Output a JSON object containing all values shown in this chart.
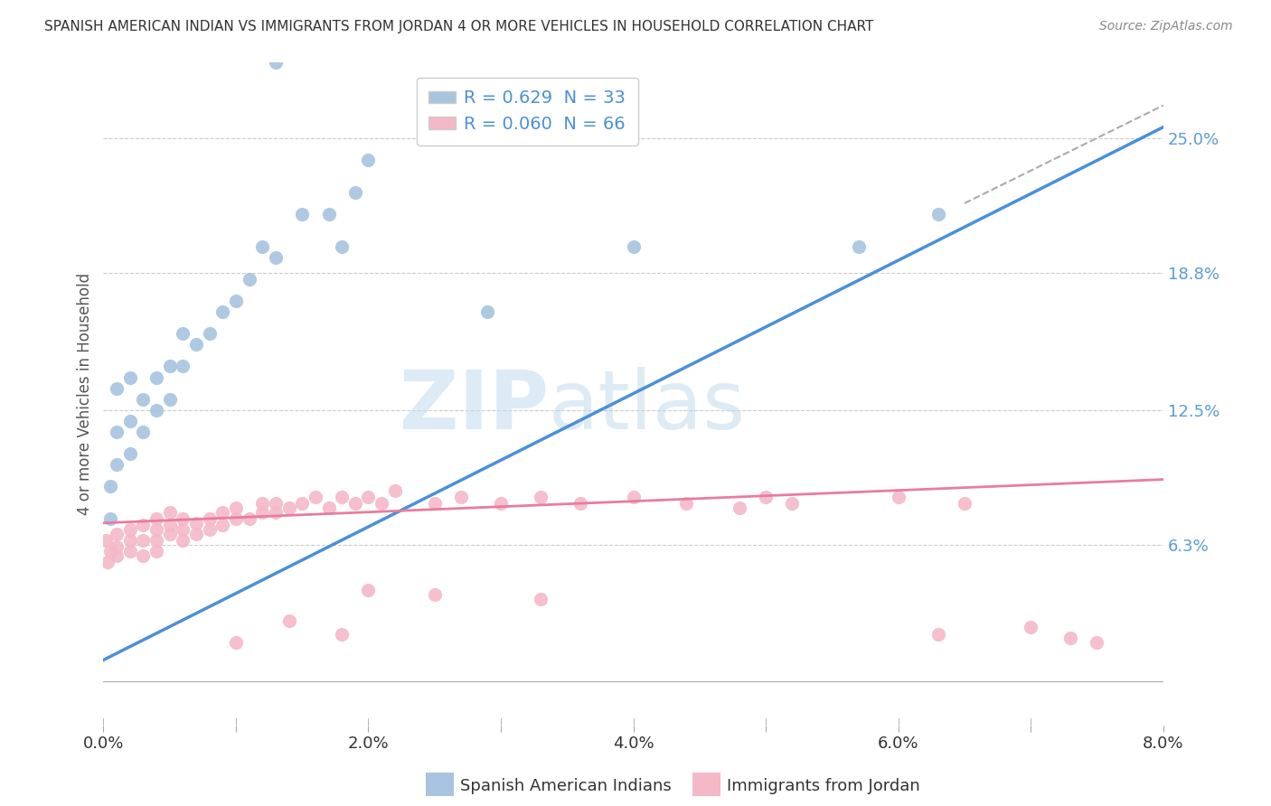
{
  "title": "SPANISH AMERICAN INDIAN VS IMMIGRANTS FROM JORDAN 4 OR MORE VEHICLES IN HOUSEHOLD CORRELATION CHART",
  "source": "Source: ZipAtlas.com",
  "ylabel": "4 or more Vehicles in Household",
  "xmin": 0.0,
  "xmax": 0.08,
  "ymin": -0.02,
  "ymax": 0.285,
  "yticks": [
    0.063,
    0.125,
    0.188,
    0.25
  ],
  "ytick_labels": [
    "6.3%",
    "12.5%",
    "18.8%",
    "25.0%"
  ],
  "xticks": [
    0.0,
    0.01,
    0.02,
    0.03,
    0.04,
    0.05,
    0.06,
    0.07,
    0.08
  ],
  "xtick_labels": [
    "0.0%",
    "",
    "2.0%",
    "",
    "4.0%",
    "",
    "6.0%",
    "",
    "8.0%"
  ],
  "grid_color": "#cccccc",
  "background_color": "#ffffff",
  "series1_color": "#a8c4e0",
  "series2_color": "#f4b8c8",
  "trendline1_color": "#4a90d9",
  "trendline2_color": "#e87ca0",
  "R1": 0.629,
  "N1": 33,
  "R2": 0.06,
  "N2": 66,
  "legend_label1": "Spanish American Indians",
  "legend_label2": "Immigrants from Jordan",
  "watermark_zip": "ZIP",
  "watermark_atlas": "atlas",
  "trendline1_x0": 0.0,
  "trendline1_y0": 0.01,
  "trendline1_x1": 0.08,
  "trendline1_y1": 0.255,
  "trendline2_x0": 0.0,
  "trendline2_y0": 0.073,
  "trendline2_x1": 0.08,
  "trendline2_y1": 0.093,
  "series1_x": [
    0.0005,
    0.0005,
    0.001,
    0.001,
    0.001,
    0.002,
    0.002,
    0.002,
    0.003,
    0.003,
    0.004,
    0.004,
    0.005,
    0.005,
    0.006,
    0.006,
    0.007,
    0.008,
    0.009,
    0.01,
    0.011,
    0.012,
    0.013,
    0.015,
    0.017,
    0.019,
    0.02,
    0.013,
    0.029,
    0.018,
    0.04,
    0.057,
    0.063
  ],
  "series1_y": [
    0.075,
    0.09,
    0.1,
    0.115,
    0.135,
    0.105,
    0.12,
    0.14,
    0.115,
    0.13,
    0.125,
    0.14,
    0.13,
    0.145,
    0.145,
    0.16,
    0.155,
    0.16,
    0.17,
    0.175,
    0.185,
    0.2,
    0.195,
    0.215,
    0.215,
    0.225,
    0.24,
    0.285,
    0.17,
    0.2,
    0.2,
    0.2,
    0.215
  ],
  "series2_x": [
    0.0002,
    0.0003,
    0.0005,
    0.001,
    0.001,
    0.001,
    0.002,
    0.002,
    0.002,
    0.003,
    0.003,
    0.003,
    0.004,
    0.004,
    0.004,
    0.004,
    0.005,
    0.005,
    0.005,
    0.006,
    0.006,
    0.006,
    0.007,
    0.007,
    0.008,
    0.008,
    0.009,
    0.009,
    0.01,
    0.01,
    0.011,
    0.012,
    0.012,
    0.013,
    0.013,
    0.014,
    0.015,
    0.016,
    0.017,
    0.018,
    0.019,
    0.02,
    0.021,
    0.022,
    0.025,
    0.027,
    0.03,
    0.033,
    0.036,
    0.04,
    0.044,
    0.048,
    0.05,
    0.052,
    0.06,
    0.065,
    0.02,
    0.025,
    0.033,
    0.014,
    0.018,
    0.01,
    0.063,
    0.07,
    0.073,
    0.075
  ],
  "series2_y": [
    0.065,
    0.055,
    0.06,
    0.058,
    0.062,
    0.068,
    0.065,
    0.06,
    0.07,
    0.058,
    0.065,
    0.072,
    0.06,
    0.065,
    0.07,
    0.075,
    0.068,
    0.072,
    0.078,
    0.065,
    0.07,
    0.075,
    0.068,
    0.073,
    0.07,
    0.075,
    0.072,
    0.078,
    0.075,
    0.08,
    0.075,
    0.078,
    0.082,
    0.078,
    0.082,
    0.08,
    0.082,
    0.085,
    0.08,
    0.085,
    0.082,
    0.085,
    0.082,
    0.088,
    0.082,
    0.085,
    0.082,
    0.085,
    0.082,
    0.085,
    0.082,
    0.08,
    0.085,
    0.082,
    0.085,
    0.082,
    0.042,
    0.04,
    0.038,
    0.028,
    0.022,
    0.018,
    0.022,
    0.025,
    0.02,
    0.018
  ],
  "marker_size": 120
}
